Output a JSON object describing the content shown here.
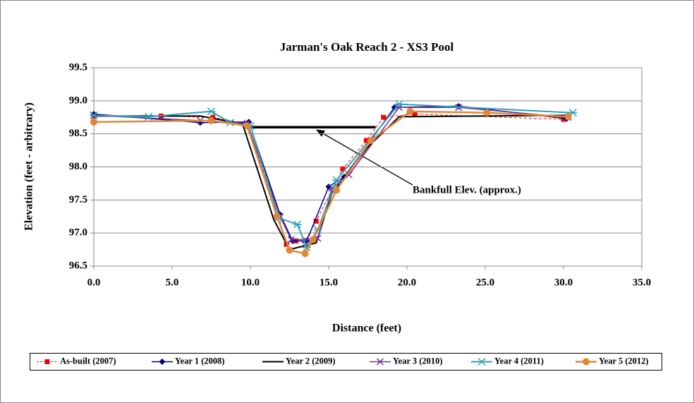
{
  "chart_data": {
    "type": "line",
    "title": "Jarman's Oak Reach 2 - XS3 Pool",
    "xlabel": "Distance (feet)",
    "ylabel": "Elevation (feet - arbitrary)",
    "xlim": [
      0,
      35
    ],
    "ylim": [
      96.5,
      99.5
    ],
    "xticks": [
      {
        "value": 0,
        "label": "0.0"
      },
      {
        "value": 5,
        "label": "5.0"
      },
      {
        "value": 10,
        "label": "10.0"
      },
      {
        "value": 15,
        "label": "15.0"
      },
      {
        "value": 20,
        "label": "20.0"
      },
      {
        "value": 25,
        "label": "25.0"
      },
      {
        "value": 30,
        "label": "30.0"
      },
      {
        "value": 35,
        "label": "35.0"
      }
    ],
    "yticks": [
      96.5,
      {
        "value": 97,
        "label": "97.0"
      },
      97.5,
      {
        "value": 98,
        "label": "98.0"
      },
      98.5,
      {
        "value": 99,
        "label": "99.0"
      },
      99.5
    ],
    "grid": true,
    "legend": "bottom",
    "series": [
      {
        "name": "As-built (2007)",
        "color": "#ff0000",
        "marker": "square",
        "dashed": true,
        "x": [
          0,
          4.3,
          7.6,
          9.8,
          11.8,
          12.3,
          12.9,
          13.5,
          14.2,
          15.9,
          17.4,
          18.5,
          20.5,
          30.0
        ],
        "values": [
          98.77,
          98.77,
          98.75,
          98.65,
          97.25,
          96.83,
          96.88,
          96.88,
          97.18,
          97.97,
          98.4,
          98.75,
          98.8,
          98.72
        ]
      },
      {
        "name": "Year 1 (2008)",
        "color": "#000080",
        "marker": "diamond",
        "x": [
          0,
          6.8,
          9.9,
          11.9,
          12.7,
          13.6,
          15.0,
          16.0,
          19.2,
          23.3,
          30.2
        ],
        "values": [
          98.8,
          98.67,
          98.68,
          97.28,
          96.88,
          96.88,
          97.7,
          97.85,
          98.9,
          98.92,
          98.73
        ]
      },
      {
        "name": "Year 2 (2009)",
        "color": "#000000",
        "marker": "none",
        "x": [
          0,
          6.8,
          9.5,
          11.5,
          12.5,
          13.0,
          14.2,
          15.2,
          17.5,
          19.5,
          30.5
        ],
        "values": [
          98.77,
          98.77,
          98.65,
          97.2,
          96.75,
          96.78,
          96.85,
          97.6,
          98.3,
          98.76,
          98.78
        ]
      },
      {
        "name": "Year 3 (2010)",
        "color": "#7030a0",
        "marker": "x",
        "x": [
          0,
          6.8,
          9.8,
          11.9,
          12.6,
          13.5,
          14.3,
          15.2,
          16.3,
          19.5,
          23.3,
          30.3
        ],
        "values": [
          98.78,
          98.7,
          98.66,
          97.25,
          96.9,
          96.9,
          96.92,
          97.68,
          97.88,
          98.9,
          98.9,
          98.75
        ]
      },
      {
        "name": "Year 4 (2011)",
        "color": "#31a0b8",
        "marker": "star",
        "x": [
          0,
          3.5,
          7.5,
          8.7,
          10.0,
          11.8,
          13.0,
          13.6,
          14.3,
          15.5,
          19.5,
          30.6
        ],
        "values": [
          98.78,
          98.76,
          98.84,
          98.67,
          98.62,
          97.23,
          97.13,
          96.78,
          97.05,
          97.8,
          98.95,
          98.82
        ]
      },
      {
        "name": "Year 5 (2012)",
        "color": "#e0873a",
        "marker": "circle",
        "x": [
          0,
          7.5,
          9.8,
          11.7,
          12.5,
          13.5,
          14.0,
          15.5,
          17.7,
          20.2,
          25.1,
          30.3
        ],
        "values": [
          98.68,
          98.7,
          98.62,
          97.25,
          96.74,
          96.69,
          96.9,
          97.65,
          98.4,
          98.84,
          98.82,
          98.76
        ]
      }
    ],
    "bankfull": {
      "label": "Bankfull Elev. (approx.)",
      "elevation": 98.6,
      "x_start": 9.8,
      "x_end": 18.0
    }
  }
}
